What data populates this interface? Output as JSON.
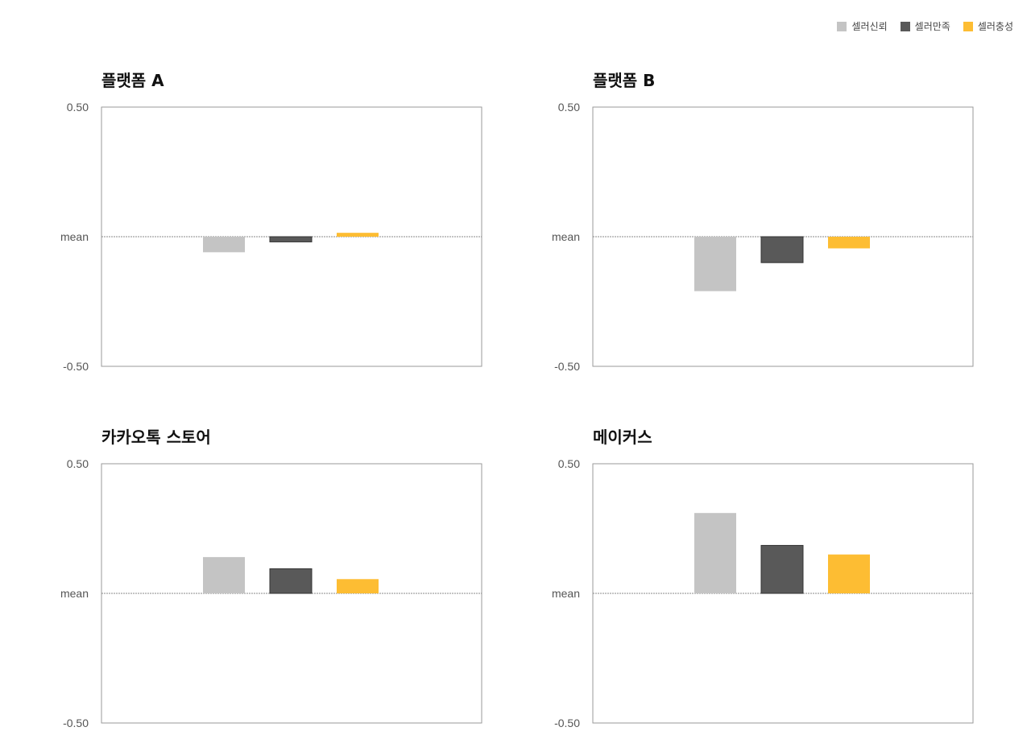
{
  "legend": [
    {
      "label": "셀러신뢰",
      "color": "#c4c4c4"
    },
    {
      "label": "셀러만족",
      "color": "#595959"
    },
    {
      "label": "셀러충성",
      "color": "#fdbd33"
    }
  ],
  "chart_data": [
    {
      "type": "bar",
      "title": "플랫폼 A",
      "categories": [
        "셀러신뢰",
        "셀러만족",
        "셀러충성"
      ],
      "values": [
        -0.06,
        -0.02,
        0.015
      ],
      "ylim": [
        -0.5,
        0.5
      ],
      "yticks": [
        {
          "label": "0.50",
          "value": 0.5
        },
        {
          "label": "mean",
          "value": 0
        },
        {
          "label": "-0.50",
          "value": -0.5
        }
      ],
      "grid": false,
      "legend": "top-right"
    },
    {
      "type": "bar",
      "title": "플랫폼 B",
      "categories": [
        "셀러신뢰",
        "셀러만족",
        "셀러충성"
      ],
      "values": [
        -0.21,
        -0.1,
        -0.045
      ],
      "ylim": [
        -0.5,
        0.5
      ],
      "yticks": [
        {
          "label": "0.50",
          "value": 0.5
        },
        {
          "label": "mean",
          "value": 0
        },
        {
          "label": "-0.50",
          "value": -0.5
        }
      ],
      "grid": false,
      "legend": "top-right"
    },
    {
      "type": "bar",
      "title": "카카오톡 스토어",
      "categories": [
        "셀러신뢰",
        "셀러만족",
        "셀러충성"
      ],
      "values": [
        0.14,
        0.095,
        0.055
      ],
      "ylim": [
        -0.5,
        0.5
      ],
      "yticks": [
        {
          "label": "0.50",
          "value": 0.5
        },
        {
          "label": "mean",
          "value": 0
        },
        {
          "label": "-0.50",
          "value": -0.5
        }
      ],
      "grid": false,
      "legend": "top-right"
    },
    {
      "type": "bar",
      "title": "메이커스",
      "categories": [
        "셀러신뢰",
        "셀러만족",
        "셀러충성"
      ],
      "values": [
        0.31,
        0.185,
        0.15
      ],
      "ylim": [
        -0.5,
        0.5
      ],
      "yticks": [
        {
          "label": "0.50",
          "value": 0.5
        },
        {
          "label": "mean",
          "value": 0
        },
        {
          "label": "-0.50",
          "value": -0.5
        }
      ],
      "grid": false,
      "legend": "top-right"
    }
  ]
}
